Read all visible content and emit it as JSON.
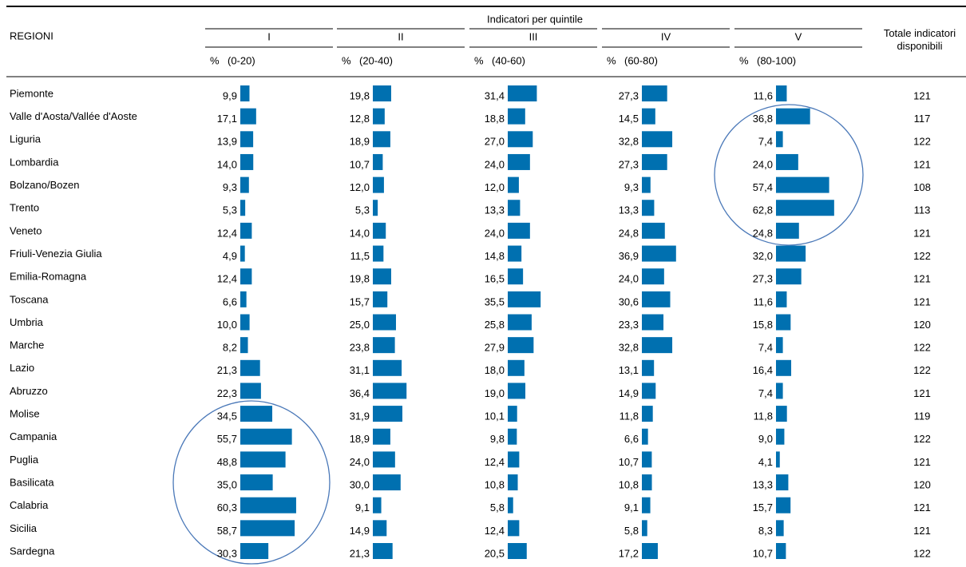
{
  "table": {
    "header": {
      "group": "Indicatori per quintile",
      "region": "REGIONI",
      "total": "Totale indicatori disponibili",
      "unit": "%"
    },
    "quintiles": [
      {
        "numeral": "I",
        "range": "(0-20)"
      },
      {
        "numeral": "II",
        "range": "(20-40)"
      },
      {
        "numeral": "III",
        "range": "(40-60)"
      },
      {
        "numeral": "IV",
        "range": "(60-80)"
      },
      {
        "numeral": "V",
        "range": "(80-100)"
      }
    ],
    "bar_color": "#0070b0",
    "rows": [
      {
        "region": "Piemonte",
        "values": [
          9.9,
          19.8,
          31.4,
          27.3,
          11.6
        ],
        "value_labels": [
          "9,9",
          "19,8",
          "31,4",
          "27,3",
          "11,6"
        ],
        "total": 121
      },
      {
        "region": "Valle d'Aosta/Vallée d'Aoste",
        "values": [
          17.1,
          12.8,
          18.8,
          14.5,
          36.8
        ],
        "value_labels": [
          "17,1",
          "12,8",
          "18,8",
          "14,5",
          "36,8"
        ],
        "total": 117
      },
      {
        "region": "Liguria",
        "values": [
          13.9,
          18.9,
          27.0,
          32.8,
          7.4
        ],
        "value_labels": [
          "13,9",
          "18,9",
          "27,0",
          "32,8",
          "7,4"
        ],
        "total": 122
      },
      {
        "region": "Lombardia",
        "values": [
          14.0,
          10.7,
          24.0,
          27.3,
          24.0
        ],
        "value_labels": [
          "14,0",
          "10,7",
          "24,0",
          "27,3",
          "24,0"
        ],
        "total": 121
      },
      {
        "region": "Bolzano/Bozen",
        "values": [
          9.3,
          12.0,
          12.0,
          9.3,
          57.4
        ],
        "value_labels": [
          "9,3",
          "12,0",
          "12,0",
          "9,3",
          "57,4"
        ],
        "total": 108
      },
      {
        "region": "Trento",
        "values": [
          5.3,
          5.3,
          13.3,
          13.3,
          62.8
        ],
        "value_labels": [
          "5,3",
          "5,3",
          "13,3",
          "13,3",
          "62,8"
        ],
        "total": 113
      },
      {
        "region": "Veneto",
        "values": [
          12.4,
          14.0,
          24.0,
          24.8,
          24.8
        ],
        "value_labels": [
          "12,4",
          "14,0",
          "24,0",
          "24,8",
          "24,8"
        ],
        "total": 121
      },
      {
        "region": "Friuli-Venezia Giulia",
        "values": [
          4.9,
          11.5,
          14.8,
          36.9,
          32.0
        ],
        "value_labels": [
          "4,9",
          "11,5",
          "14,8",
          "36,9",
          "32,0"
        ],
        "total": 122
      },
      {
        "region": "Emilia-Romagna",
        "values": [
          12.4,
          19.8,
          16.5,
          24.0,
          27.3
        ],
        "value_labels": [
          "12,4",
          "19,8",
          "16,5",
          "24,0",
          "27,3"
        ],
        "total": 121
      },
      {
        "region": "Toscana",
        "values": [
          6.6,
          15.7,
          35.5,
          30.6,
          11.6
        ],
        "value_labels": [
          "6,6",
          "15,7",
          "35,5",
          "30,6",
          "11,6"
        ],
        "total": 121
      },
      {
        "region": "Umbria",
        "values": [
          10.0,
          25.0,
          25.8,
          23.3,
          15.8
        ],
        "value_labels": [
          "10,0",
          "25,0",
          "25,8",
          "23,3",
          "15,8"
        ],
        "total": 120
      },
      {
        "region": "Marche",
        "values": [
          8.2,
          23.8,
          27.9,
          32.8,
          7.4
        ],
        "value_labels": [
          "8,2",
          "23,8",
          "27,9",
          "32,8",
          "7,4"
        ],
        "total": 122
      },
      {
        "region": "Lazio",
        "values": [
          21.3,
          31.1,
          18.0,
          13.1,
          16.4
        ],
        "value_labels": [
          "21,3",
          "31,1",
          "18,0",
          "13,1",
          "16,4"
        ],
        "total": 122
      },
      {
        "region": "Abruzzo",
        "values": [
          22.3,
          36.4,
          19.0,
          14.9,
          7.4
        ],
        "value_labels": [
          "22,3",
          "36,4",
          "19,0",
          "14,9",
          "7,4"
        ],
        "total": 121
      },
      {
        "region": "Molise",
        "values": [
          34.5,
          31.9,
          10.1,
          11.8,
          11.8
        ],
        "value_labels": [
          "34,5",
          "31,9",
          "10,1",
          "11,8",
          "11,8"
        ],
        "total": 119
      },
      {
        "region": "Campania",
        "values": [
          55.7,
          18.9,
          9.8,
          6.6,
          9.0
        ],
        "value_labels": [
          "55,7",
          "18,9",
          "9,8",
          "6,6",
          "9,0"
        ],
        "total": 122
      },
      {
        "region": "Puglia",
        "values": [
          48.8,
          24.0,
          12.4,
          10.7,
          4.1
        ],
        "value_labels": [
          "48,8",
          "24,0",
          "12,4",
          "10,7",
          "4,1"
        ],
        "total": 121
      },
      {
        "region": "Basilicata",
        "values": [
          35.0,
          30.0,
          10.8,
          10.8,
          13.3
        ],
        "value_labels": [
          "35,0",
          "30,0",
          "10,8",
          "10,8",
          "13,3"
        ],
        "total": 120
      },
      {
        "region": "Calabria",
        "values": [
          60.3,
          9.1,
          5.8,
          9.1,
          15.7
        ],
        "value_labels": [
          "60,3",
          "9,1",
          "5,8",
          "9,1",
          "15,7"
        ],
        "total": 121
      },
      {
        "region": "Sicilia",
        "values": [
          58.7,
          14.9,
          12.4,
          5.8,
          8.3
        ],
        "value_labels": [
          "58,7",
          "14,9",
          "12,4",
          "5,8",
          "8,3"
        ],
        "total": 121
      },
      {
        "region": "Sardegna",
        "values": [
          30.3,
          21.3,
          20.5,
          17.2,
          10.7
        ],
        "value_labels": [
          "30,3",
          "21,3",
          "20,5",
          "17,2",
          "10,7"
        ],
        "total": 122
      }
    ]
  }
}
